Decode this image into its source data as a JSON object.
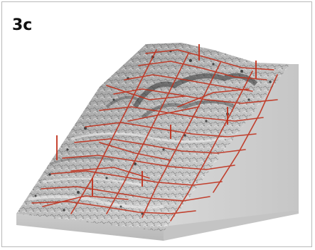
{
  "figure": {
    "panel_label": "3c"
  },
  "scene": {
    "description_icon": "terrain-3d-block-icon",
    "colors": {
      "terrain_light": "#e4e4e4",
      "terrain_mid": "#9a9a9a",
      "terrain_dark": "#3a3a3a",
      "block_side": "#cfcfcf",
      "block_front": "#bdbdbd",
      "lines": "#c0301c"
    }
  }
}
